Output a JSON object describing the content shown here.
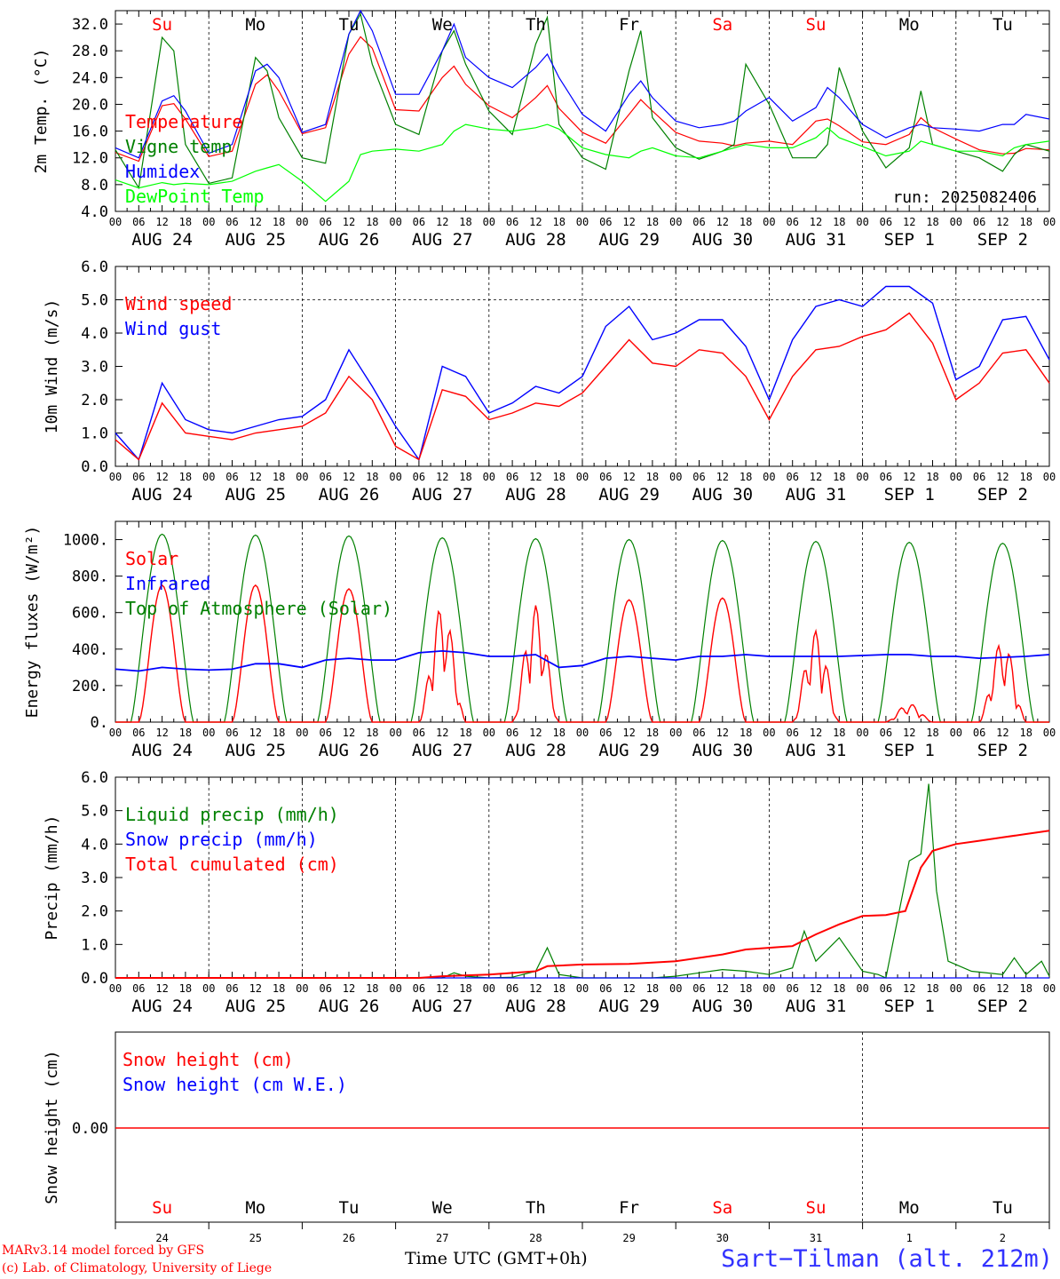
{
  "chart_data": [
    {
      "type": "line",
      "ylabel": "2m Temp. (°C)",
      "ylim": [
        4,
        34
      ],
      "yticks": [
        "4.0",
        "8.0",
        "12.0",
        "16.0",
        "20.0",
        "24.0",
        "28.0",
        "32.0"
      ],
      "ytick_values": [
        4,
        8,
        12,
        16,
        20,
        24,
        28,
        32
      ],
      "x_hours": [
        0,
        6,
        12,
        15,
        18,
        24,
        30,
        36,
        39,
        42,
        48,
        54,
        60,
        63,
        66,
        72,
        78,
        84,
        87,
        90,
        96,
        102,
        108,
        111,
        114,
        120,
        126,
        132,
        135,
        138,
        144,
        150,
        156,
        159,
        162,
        168,
        174,
        180,
        183,
        186,
        192,
        198,
        204,
        207,
        210,
        216,
        222,
        228,
        231,
        234,
        240
      ],
      "series": [
        {
          "name": "Temperature",
          "color": "#ff0000",
          "values": [
            12.8,
            11.5,
            19.8,
            20.1,
            17.8,
            12.2,
            13.0,
            23.0,
            24.4,
            22.0,
            15.6,
            16.5,
            27.5,
            30.1,
            28.4,
            19.2,
            19.0,
            24.0,
            25.7,
            23.0,
            19.8,
            18.0,
            21.0,
            22.8,
            19.4,
            15.8,
            14.2,
            18.5,
            20.7,
            19.0,
            15.8,
            14.5,
            14.2,
            13.8,
            14.2,
            14.5,
            14.0,
            17.5,
            17.8,
            16.8,
            14.4,
            14.0,
            15.5,
            18.0,
            16.5,
            14.8,
            13.2,
            12.6,
            12.7,
            13.4,
            13.2
          ]
        },
        {
          "name": "Vigne temp",
          "color": "#008000",
          "values": [
            13.2,
            7.5,
            30.0,
            28.0,
            14.0,
            8.2,
            9.0,
            27.0,
            25.0,
            18.0,
            12.0,
            11.2,
            30.5,
            33.5,
            26.0,
            17.0,
            15.5,
            28.0,
            31.0,
            26.0,
            19.0,
            15.5,
            29.0,
            33.0,
            17.0,
            12.0,
            10.3,
            25.0,
            31.0,
            18.0,
            13.5,
            11.8,
            13.0,
            14.0,
            26.0,
            20.0,
            12.0,
            12.0,
            14.0,
            25.5,
            16.0,
            10.5,
            13.5,
            22.0,
            14.0,
            13.0,
            12.0,
            10.0,
            12.5,
            14.0,
            13.0
          ]
        },
        {
          "name": "Humidex",
          "color": "#0000ff",
          "values": [
            13.5,
            12.0,
            20.5,
            21.3,
            19.0,
            12.7,
            14.0,
            25.0,
            26.0,
            24.0,
            15.8,
            17.0,
            30.5,
            34.0,
            31.0,
            21.5,
            21.5,
            28.0,
            32.0,
            27.0,
            24.0,
            22.5,
            25.5,
            27.5,
            24.0,
            18.5,
            16.0,
            21.5,
            23.5,
            21.0,
            17.5,
            16.5,
            17.0,
            17.5,
            19.0,
            21.0,
            17.5,
            19.5,
            22.5,
            21.0,
            17.0,
            15.0,
            16.5,
            17.0,
            16.5,
            16.3,
            16.0,
            17.0,
            17.0,
            18.5,
            17.8
          ]
        },
        {
          "name": "DewPoint Temp",
          "color": "#00ff00",
          "values": [
            8.7,
            7.5,
            8.3,
            8.0,
            8.2,
            8.0,
            8.5,
            10.0,
            10.5,
            11.0,
            8.5,
            5.5,
            8.5,
            12.5,
            13.0,
            13.3,
            13.0,
            14.0,
            16.0,
            17.0,
            16.3,
            16.0,
            16.5,
            17.0,
            16.3,
            13.5,
            12.5,
            12.0,
            13.0,
            13.5,
            12.3,
            12.0,
            13.0,
            13.5,
            14.0,
            13.5,
            13.5,
            15.0,
            16.5,
            15.0,
            13.7,
            12.3,
            13.0,
            14.5,
            14.0,
            13.0,
            13.0,
            12.3,
            13.5,
            14.0,
            14.5
          ]
        }
      ],
      "annotation": "run: 2025082406"
    },
    {
      "type": "line",
      "ylabel": "10m Wind (m/s)",
      "ylim": [
        0,
        6
      ],
      "yticks": [
        "0.0",
        "1.0",
        "2.0",
        "3.0",
        "4.0",
        "5.0",
        "6.0"
      ],
      "ytick_values": [
        0,
        1,
        2,
        3,
        4,
        5,
        6
      ],
      "x_hours": [
        0,
        6,
        12,
        18,
        24,
        30,
        36,
        42,
        48,
        54,
        60,
        66,
        72,
        78,
        84,
        90,
        96,
        102,
        108,
        114,
        120,
        126,
        132,
        138,
        144,
        150,
        156,
        162,
        168,
        174,
        180,
        186,
        192,
        198,
        204,
        210,
        216,
        222,
        228,
        234,
        240
      ],
      "series": [
        {
          "name": "Wind speed",
          "color": "#ff0000",
          "values": [
            0.8,
            0.2,
            1.9,
            1.0,
            0.9,
            0.8,
            1.0,
            1.1,
            1.2,
            1.6,
            2.7,
            2.0,
            0.6,
            0.2,
            2.3,
            2.1,
            1.4,
            1.6,
            1.9,
            1.8,
            2.2,
            3.0,
            3.8,
            3.1,
            3.0,
            3.5,
            3.4,
            2.7,
            1.4,
            2.7,
            3.5,
            3.6,
            3.9,
            4.1,
            4.6,
            3.7,
            2.0,
            2.5,
            3.4,
            3.5,
            2.5
          ]
        },
        {
          "name": "Wind gust",
          "color": "#0000ff",
          "values": [
            1.0,
            0.2,
            2.5,
            1.4,
            1.1,
            1.0,
            1.2,
            1.4,
            1.5,
            2.0,
            3.5,
            2.4,
            1.2,
            0.2,
            3.0,
            2.7,
            1.6,
            1.9,
            2.4,
            2.2,
            2.7,
            4.2,
            4.8,
            3.8,
            4.0,
            4.4,
            4.4,
            3.6,
            2.0,
            3.8,
            4.8,
            5.0,
            4.8,
            5.4,
            5.4,
            4.9,
            2.6,
            3.0,
            4.4,
            4.5,
            3.2
          ]
        }
      ],
      "reference_line": 5.0
    },
    {
      "type": "line",
      "ylabel": "Energy fluxes (W/m²)",
      "ylim": [
        0,
        1100
      ],
      "yticks": [
        "0.",
        "200.",
        "400.",
        "600.",
        "800.",
        "1000."
      ],
      "ytick_values": [
        0,
        200,
        400,
        600,
        800,
        1000
      ],
      "series": [
        {
          "name": "Solar",
          "color": "#ff0000",
          "daily_peak": [
            750,
            750,
            730,
            640,
            640,
            670,
            680,
            500,
            100,
            450
          ],
          "cloudy_days": [
            3,
            4,
            7,
            8,
            9
          ]
        },
        {
          "name": "Infrared",
          "color": "#0000ff",
          "values": [
            290,
            280,
            300,
            290,
            285,
            290,
            320,
            320,
            300,
            340,
            350,
            340,
            340,
            380,
            390,
            380,
            360,
            360,
            370,
            300,
            310,
            350,
            360,
            350,
            340,
            360,
            360,
            370,
            360,
            360,
            360,
            360,
            365,
            370,
            370,
            360,
            360,
            350,
            355,
            360,
            370
          ]
        },
        {
          "name": "Top of Atmosphere (Solar)",
          "color": "#008000",
          "daily_peak": [
            1030,
            1025,
            1020,
            1010,
            1005,
            1000,
            995,
            990,
            985,
            980
          ]
        }
      ]
    },
    {
      "type": "line",
      "ylabel": "Precip (mm/h)",
      "ylim": [
        0,
        6
      ],
      "yticks": [
        "0.0",
        "1.0",
        "2.0",
        "3.0",
        "4.0",
        "5.0",
        "6.0"
      ],
      "ytick_values": [
        0,
        1,
        2,
        3,
        4,
        5,
        6
      ],
      "series": [
        {
          "name": "Liquid precip (mm/h)",
          "color": "#008000",
          "points": [
            [
              0,
              0
            ],
            [
              84,
              0
            ],
            [
              87,
              0.15
            ],
            [
              90,
              0.05
            ],
            [
              96,
              0
            ],
            [
              102,
              0.02
            ],
            [
              108,
              0.2
            ],
            [
              111,
              0.9
            ],
            [
              114,
              0.1
            ],
            [
              120,
              0
            ],
            [
              138,
              0
            ],
            [
              144,
              0.05
            ],
            [
              150,
              0.15
            ],
            [
              156,
              0.25
            ],
            [
              162,
              0.2
            ],
            [
              168,
              0.1
            ],
            [
              174,
              0.3
            ],
            [
              177,
              1.4
            ],
            [
              180,
              0.5
            ],
            [
              186,
              1.2
            ],
            [
              192,
              0.2
            ],
            [
              196,
              0.1
            ],
            [
              198,
              0
            ],
            [
              204,
              3.5
            ],
            [
              207,
              3.7
            ],
            [
              209,
              5.8
            ],
            [
              211,
              2.6
            ],
            [
              214,
              0.5
            ],
            [
              220,
              0.2
            ],
            [
              228,
              0.1
            ],
            [
              231,
              0.6
            ],
            [
              234,
              0.1
            ],
            [
              238,
              0.5
            ],
            [
              240,
              0.05
            ]
          ]
        },
        {
          "name": "Snow precip (mm/h)",
          "color": "#0000ff",
          "points": [
            [
              0,
              0
            ],
            [
              240,
              0
            ]
          ]
        },
        {
          "name": "Total cumulated (cm)",
          "color": "#ff0000",
          "points": [
            [
              0,
              0
            ],
            [
              78,
              0
            ],
            [
              84,
              0.05
            ],
            [
              96,
              0.1
            ],
            [
              108,
              0.2
            ],
            [
              111,
              0.35
            ],
            [
              120,
              0.4
            ],
            [
              132,
              0.42
            ],
            [
              144,
              0.5
            ],
            [
              156,
              0.7
            ],
            [
              162,
              0.85
            ],
            [
              174,
              0.95
            ],
            [
              180,
              1.3
            ],
            [
              186,
              1.6
            ],
            [
              192,
              1.85
            ],
            [
              198,
              1.88
            ],
            [
              203,
              2.0
            ],
            [
              207,
              3.3
            ],
            [
              210,
              3.8
            ],
            [
              216,
              4.0
            ],
            [
              222,
              4.1
            ],
            [
              228,
              4.2
            ],
            [
              234,
              4.3
            ],
            [
              240,
              4.4
            ]
          ]
        }
      ]
    },
    {
      "type": "line",
      "ylabel": "Snow height (cm)",
      "ytick": "0.00",
      "series": [
        {
          "name": "Snow height (cm)",
          "color": "#ff0000",
          "value": 0.0
        },
        {
          "name": "Snow height (cm W.E.)",
          "color": "#0000ff",
          "value": 0.0
        }
      ]
    }
  ],
  "axis": {
    "hour_ticks": [
      "00",
      "06",
      "12",
      "18"
    ],
    "date_labels": [
      "AUG 24",
      "AUG 25",
      "AUG 26",
      "AUG 27",
      "AUG 28",
      "AUG 29",
      "AUG 30",
      "AUG 31",
      "SEP  1",
      "SEP  2"
    ],
    "weekdays": [
      "Su",
      "Mo",
      "Tu",
      "We",
      "Th",
      "Fr",
      "Sa",
      "Su",
      "Mo",
      "Tu"
    ],
    "weekday_colors": [
      "#ff0000",
      "#000000",
      "#000000",
      "#000000",
      "#000000",
      "#000000",
      "#ff0000",
      "#ff0000",
      "#000000",
      "#000000"
    ],
    "day_numbers": [
      "24",
      "25",
      "26",
      "27",
      "28",
      "29",
      "30",
      "31",
      "1",
      "2"
    ]
  },
  "footer": {
    "model": "MARv3.14 model forced by GFS",
    "credit": "(c) Lab. of Climatology, University of Liege",
    "time_label": "Time UTC (GMT+0h)",
    "station": "Sart−Tilman (alt. 212m)"
  }
}
